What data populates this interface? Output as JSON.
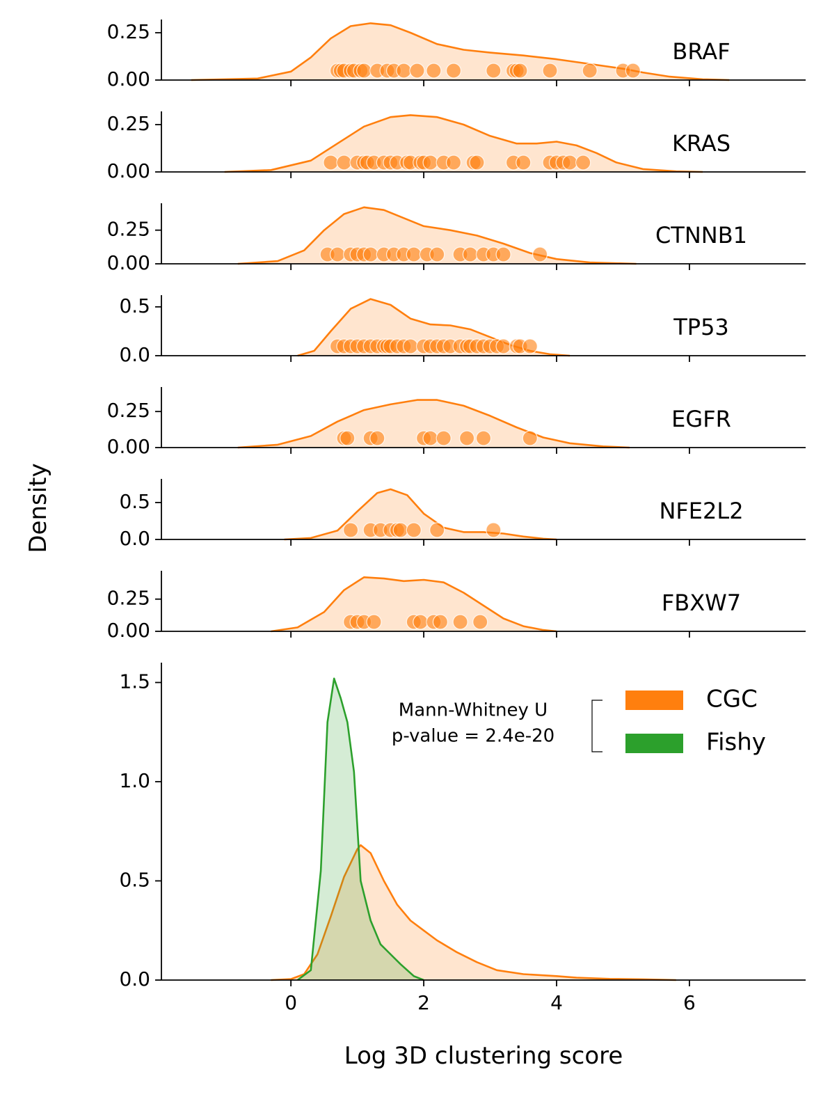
{
  "figure": {
    "ylabel": "Density",
    "xlabel": "Log 3D clustering score"
  },
  "colors": {
    "cgc": "#ff7f0e",
    "fishy": "#2ca02c"
  },
  "chart_data": [
    {
      "type": "area",
      "gene": "BRAF",
      "ylim": [
        0,
        0.32
      ],
      "yticks": [
        0,
        0.25
      ],
      "ytick_labels": [
        "0.00",
        "0.25"
      ],
      "xlim": [
        -1.95,
        7.75
      ],
      "xticks": [
        0,
        2,
        4,
        6
      ],
      "kde": [
        [
          -1.5,
          0
        ],
        [
          -0.5,
          0.008
        ],
        [
          0,
          0.045
        ],
        [
          0.3,
          0.12
        ],
        [
          0.6,
          0.22
        ],
        [
          0.9,
          0.285
        ],
        [
          1.2,
          0.3
        ],
        [
          1.5,
          0.29
        ],
        [
          1.8,
          0.25
        ],
        [
          2.2,
          0.19
        ],
        [
          2.6,
          0.16
        ],
        [
          3.0,
          0.145
        ],
        [
          3.5,
          0.13
        ],
        [
          4.0,
          0.11
        ],
        [
          4.5,
          0.085
        ],
        [
          5.0,
          0.06
        ],
        [
          5.3,
          0.04
        ],
        [
          5.7,
          0.018
        ],
        [
          6.2,
          0.004
        ],
        [
          6.6,
          0
        ]
      ],
      "points": [
        0.7,
        0.75,
        0.8,
        0.9,
        0.95,
        1.05,
        1.1,
        1.3,
        1.45,
        1.55,
        1.7,
        1.9,
        2.15,
        2.45,
        3.05,
        3.35,
        3.4,
        3.45,
        3.9,
        4.5,
        5.0,
        5.15
      ]
    },
    {
      "type": "area",
      "gene": "KRAS",
      "ylim": [
        0,
        0.32
      ],
      "yticks": [
        0,
        0.25
      ],
      "ytick_labels": [
        "0.00",
        "0.25"
      ],
      "xlim": [
        -1.95,
        7.75
      ],
      "xticks": [
        0,
        2,
        4,
        6
      ],
      "kde": [
        [
          -1.0,
          0
        ],
        [
          -0.3,
          0.01
        ],
        [
          0.3,
          0.06
        ],
        [
          0.7,
          0.15
        ],
        [
          1.1,
          0.24
        ],
        [
          1.5,
          0.29
        ],
        [
          1.8,
          0.3
        ],
        [
          2.2,
          0.29
        ],
        [
          2.6,
          0.25
        ],
        [
          3.0,
          0.19
        ],
        [
          3.4,
          0.15
        ],
        [
          3.7,
          0.15
        ],
        [
          4.0,
          0.16
        ],
        [
          4.3,
          0.14
        ],
        [
          4.6,
          0.1
        ],
        [
          4.9,
          0.05
        ],
        [
          5.3,
          0.015
        ],
        [
          5.8,
          0.003
        ],
        [
          6.2,
          0
        ]
      ],
      "points": [
        0.6,
        0.8,
        1.0,
        1.1,
        1.15,
        1.25,
        1.4,
        1.5,
        1.6,
        1.75,
        1.8,
        1.95,
        2.0,
        2.1,
        2.3,
        2.45,
        2.75,
        2.8,
        3.35,
        3.5,
        3.9,
        4.0,
        4.1,
        4.2,
        4.4
      ]
    },
    {
      "type": "area",
      "gene": "CTNNB1",
      "ylim": [
        0,
        0.45
      ],
      "yticks": [
        0,
        0.25
      ],
      "ytick_labels": [
        "0.00",
        "0.25"
      ],
      "xlim": [
        -1.95,
        7.75
      ],
      "xticks": [
        0,
        2,
        4,
        6
      ],
      "kde": [
        [
          -0.8,
          0
        ],
        [
          -0.2,
          0.02
        ],
        [
          0.2,
          0.1
        ],
        [
          0.5,
          0.25
        ],
        [
          0.8,
          0.37
        ],
        [
          1.1,
          0.42
        ],
        [
          1.4,
          0.4
        ],
        [
          1.7,
          0.34
        ],
        [
          2.0,
          0.28
        ],
        [
          2.4,
          0.25
        ],
        [
          2.8,
          0.21
        ],
        [
          3.2,
          0.15
        ],
        [
          3.6,
          0.08
        ],
        [
          4.0,
          0.035
        ],
        [
          4.5,
          0.01
        ],
        [
          5.0,
          0.003
        ],
        [
          5.2,
          0
        ]
      ],
      "points": [
        0.55,
        0.7,
        0.9,
        1.0,
        1.1,
        1.2,
        1.4,
        1.55,
        1.7,
        1.85,
        2.05,
        2.2,
        2.55,
        2.7,
        2.9,
        3.05,
        3.2,
        3.75
      ]
    },
    {
      "type": "area",
      "gene": "TP53",
      "ylim": [
        0,
        0.62
      ],
      "yticks": [
        0,
        0.5
      ],
      "ytick_labels": [
        "0.0",
        "0.5"
      ],
      "xlim": [
        -1.95,
        7.75
      ],
      "xticks": [
        0,
        2,
        4,
        6
      ],
      "kde": [
        [
          0.1,
          0
        ],
        [
          0.35,
          0.05
        ],
        [
          0.6,
          0.25
        ],
        [
          0.9,
          0.48
        ],
        [
          1.2,
          0.58
        ],
        [
          1.5,
          0.52
        ],
        [
          1.8,
          0.38
        ],
        [
          2.1,
          0.32
        ],
        [
          2.4,
          0.31
        ],
        [
          2.7,
          0.27
        ],
        [
          3.0,
          0.19
        ],
        [
          3.3,
          0.11
        ],
        [
          3.6,
          0.05
        ],
        [
          3.9,
          0.015
        ],
        [
          4.2,
          0
        ]
      ],
      "points": [
        0.7,
        0.8,
        0.9,
        1.0,
        1.1,
        1.2,
        1.3,
        1.4,
        1.45,
        1.5,
        1.6,
        1.7,
        1.8,
        2.0,
        2.1,
        2.2,
        2.3,
        2.4,
        2.55,
        2.65,
        2.7,
        2.8,
        2.9,
        3.0,
        3.1,
        3.2,
        3.4,
        3.45,
        3.6
      ]
    },
    {
      "type": "area",
      "gene": "EGFR",
      "ylim": [
        0,
        0.42
      ],
      "yticks": [
        0,
        0.25
      ],
      "ytick_labels": [
        "0.00",
        "0.25"
      ],
      "xlim": [
        -1.95,
        7.75
      ],
      "xticks": [
        0,
        2,
        4,
        6
      ],
      "kde": [
        [
          -0.8,
          0
        ],
        [
          -0.2,
          0.02
        ],
        [
          0.3,
          0.08
        ],
        [
          0.7,
          0.18
        ],
        [
          1.1,
          0.26
        ],
        [
          1.5,
          0.3
        ],
        [
          1.9,
          0.33
        ],
        [
          2.2,
          0.33
        ],
        [
          2.6,
          0.29
        ],
        [
          3.0,
          0.22
        ],
        [
          3.4,
          0.14
        ],
        [
          3.8,
          0.07
        ],
        [
          4.2,
          0.03
        ],
        [
          4.7,
          0.008
        ],
        [
          5.1,
          0
        ]
      ],
      "points": [
        0.8,
        0.85,
        1.2,
        1.3,
        2.0,
        2.1,
        2.3,
        2.65,
        2.9,
        3.6
      ]
    },
    {
      "type": "area",
      "gene": "NFE2L2",
      "ylim": [
        0,
        0.82
      ],
      "yticks": [
        0,
        0.5
      ],
      "ytick_labels": [
        "0.0",
        "0.5"
      ],
      "xlim": [
        -1.95,
        7.75
      ],
      "xticks": [
        0,
        2,
        4,
        6
      ],
      "kde": [
        [
          -0.1,
          0
        ],
        [
          0.3,
          0.02
        ],
        [
          0.7,
          0.12
        ],
        [
          1.0,
          0.38
        ],
        [
          1.3,
          0.63
        ],
        [
          1.5,
          0.68
        ],
        [
          1.75,
          0.6
        ],
        [
          2.0,
          0.35
        ],
        [
          2.3,
          0.16
        ],
        [
          2.6,
          0.1
        ],
        [
          2.9,
          0.1
        ],
        [
          3.2,
          0.08
        ],
        [
          3.5,
          0.04
        ],
        [
          3.8,
          0.01
        ],
        [
          4.0,
          0
        ]
      ],
      "points": [
        0.9,
        1.2,
        1.35,
        1.5,
        1.6,
        1.65,
        1.85,
        2.2,
        3.05
      ]
    },
    {
      "type": "area",
      "gene": "FBXW7",
      "ylim": [
        0,
        0.47
      ],
      "yticks": [
        0,
        0.25
      ],
      "ytick_labels": [
        "0.00",
        "0.25"
      ],
      "xlim": [
        -1.95,
        7.75
      ],
      "xticks": [
        0,
        2,
        4,
        6
      ],
      "kde": [
        [
          -0.3,
          0
        ],
        [
          0.1,
          0.03
        ],
        [
          0.5,
          0.15
        ],
        [
          0.8,
          0.32
        ],
        [
          1.1,
          0.42
        ],
        [
          1.4,
          0.41
        ],
        [
          1.7,
          0.39
        ],
        [
          2.0,
          0.4
        ],
        [
          2.3,
          0.38
        ],
        [
          2.6,
          0.3
        ],
        [
          2.9,
          0.2
        ],
        [
          3.2,
          0.1
        ],
        [
          3.5,
          0.04
        ],
        [
          3.8,
          0.01
        ],
        [
          4.0,
          0
        ]
      ],
      "points": [
        0.9,
        1.0,
        1.1,
        1.25,
        1.85,
        1.95,
        2.15,
        2.25,
        2.55,
        2.85
      ]
    },
    {
      "type": "area",
      "ylim": [
        0,
        1.6
      ],
      "yticks": [
        0,
        0.5,
        1.0,
        1.5
      ],
      "ytick_labels": [
        "0.0",
        "0.5",
        "1.0",
        "1.5"
      ],
      "xlim": [
        -1.95,
        7.75
      ],
      "xticks": [
        0,
        2,
        4,
        6
      ],
      "xtick_labels": [
        "0",
        "2",
        "4",
        "6"
      ],
      "series": [
        {
          "name": "CGC",
          "color": "#ff7f0e",
          "kde": [
            [
              -0.3,
              0
            ],
            [
              0.0,
              0.005
            ],
            [
              0.2,
              0.03
            ],
            [
              0.4,
              0.13
            ],
            [
              0.6,
              0.32
            ],
            [
              0.8,
              0.52
            ],
            [
              1.0,
              0.66
            ],
            [
              1.05,
              0.68
            ],
            [
              1.2,
              0.64
            ],
            [
              1.4,
              0.5
            ],
            [
              1.6,
              0.38
            ],
            [
              1.8,
              0.3
            ],
            [
              2.0,
              0.25
            ],
            [
              2.2,
              0.2
            ],
            [
              2.5,
              0.14
            ],
            [
              2.8,
              0.09
            ],
            [
              3.1,
              0.05
            ],
            [
              3.5,
              0.03
            ],
            [
              4.0,
              0.02
            ],
            [
              4.3,
              0.012
            ],
            [
              4.8,
              0.006
            ],
            [
              5.3,
              0.004
            ],
            [
              5.8,
              0
            ]
          ]
        },
        {
          "name": "Fishy",
          "color": "#2ca02c",
          "kde": [
            [
              0.1,
              0
            ],
            [
              0.3,
              0.05
            ],
            [
              0.45,
              0.55
            ],
            [
              0.55,
              1.3
            ],
            [
              0.65,
              1.52
            ],
            [
              0.75,
              1.42
            ],
            [
              0.85,
              1.3
            ],
            [
              0.95,
              1.05
            ],
            [
              1.05,
              0.5
            ],
            [
              1.2,
              0.3
            ],
            [
              1.35,
              0.18
            ],
            [
              1.5,
              0.13
            ],
            [
              1.65,
              0.08
            ],
            [
              1.85,
              0.02
            ],
            [
              2.0,
              0
            ]
          ]
        }
      ],
      "legend": [
        "CGC",
        "Fishy"
      ],
      "annotation": [
        "Mann-Whitney U",
        "p-value = 2.4e-20"
      ],
      "legend_placement": "top-right"
    }
  ]
}
